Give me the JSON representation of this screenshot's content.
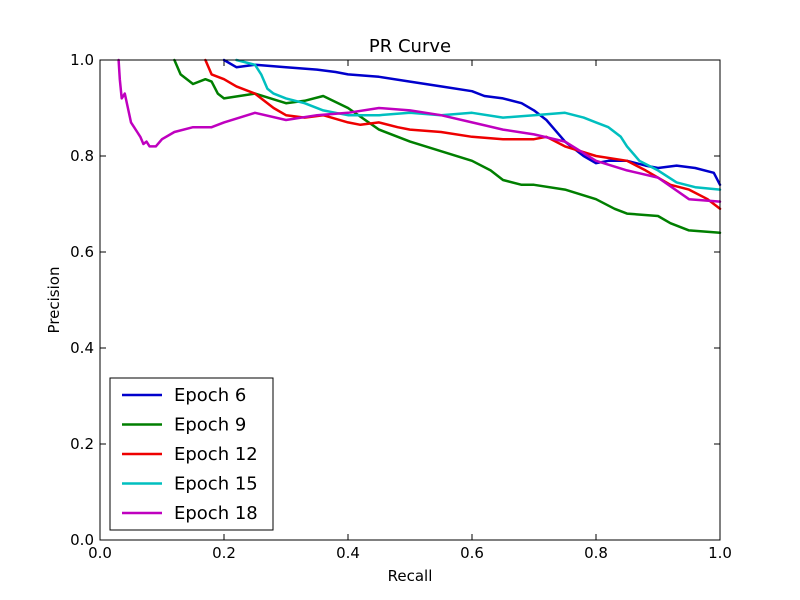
{
  "chart_data": {
    "type": "line",
    "title": "PR Curve",
    "xlabel": "Recall",
    "ylabel": "Precision",
    "xlim": [
      0.0,
      1.0
    ],
    "ylim": [
      0.0,
      1.0
    ],
    "xticks": [
      "0.0",
      "0.2",
      "0.4",
      "0.6",
      "0.8",
      "1.0"
    ],
    "yticks": [
      "0.0",
      "0.2",
      "0.4",
      "0.6",
      "0.8",
      "1.0"
    ],
    "grid": false,
    "legend_position": "lower-left",
    "series": [
      {
        "name": "Epoch 6",
        "color": "#0000cc",
        "x": [
          0.2,
          0.22,
          0.25,
          0.3,
          0.35,
          0.38,
          0.4,
          0.45,
          0.5,
          0.55,
          0.6,
          0.62,
          0.65,
          0.68,
          0.7,
          0.72,
          0.73,
          0.75,
          0.78,
          0.8,
          0.82,
          0.85,
          0.88,
          0.9,
          0.93,
          0.96,
          0.99,
          1.0
        ],
        "y": [
          1.0,
          0.985,
          0.99,
          0.985,
          0.98,
          0.975,
          0.97,
          0.965,
          0.955,
          0.945,
          0.935,
          0.925,
          0.92,
          0.91,
          0.895,
          0.875,
          0.86,
          0.83,
          0.8,
          0.785,
          0.79,
          0.79,
          0.78,
          0.775,
          0.78,
          0.775,
          0.765,
          0.74
        ]
      },
      {
        "name": "Epoch 9",
        "color": "#007f00",
        "x": [
          0.12,
          0.13,
          0.15,
          0.17,
          0.18,
          0.19,
          0.2,
          0.25,
          0.3,
          0.33,
          0.36,
          0.4,
          0.45,
          0.5,
          0.55,
          0.6,
          0.63,
          0.65,
          0.68,
          0.7,
          0.75,
          0.8,
          0.83,
          0.85,
          0.9,
          0.92,
          0.95,
          1.0
        ],
        "y": [
          1.0,
          0.97,
          0.95,
          0.96,
          0.955,
          0.93,
          0.92,
          0.93,
          0.91,
          0.915,
          0.925,
          0.9,
          0.855,
          0.83,
          0.81,
          0.79,
          0.77,
          0.75,
          0.74,
          0.74,
          0.73,
          0.71,
          0.69,
          0.68,
          0.675,
          0.66,
          0.645,
          0.64
        ]
      },
      {
        "name": "Epoch 12",
        "color": "#ee0000",
        "x": [
          0.17,
          0.18,
          0.2,
          0.22,
          0.25,
          0.28,
          0.3,
          0.33,
          0.36,
          0.4,
          0.42,
          0.45,
          0.48,
          0.5,
          0.55,
          0.6,
          0.65,
          0.7,
          0.72,
          0.75,
          0.8,
          0.85,
          0.88,
          0.92,
          0.95,
          0.98,
          1.0
        ],
        "y": [
          1.0,
          0.97,
          0.96,
          0.945,
          0.93,
          0.9,
          0.885,
          0.88,
          0.885,
          0.87,
          0.865,
          0.87,
          0.86,
          0.855,
          0.85,
          0.84,
          0.835,
          0.835,
          0.84,
          0.82,
          0.8,
          0.79,
          0.77,
          0.74,
          0.73,
          0.71,
          0.69
        ]
      },
      {
        "name": "Epoch 15",
        "color": "#00bfbf",
        "x": [
          0.22,
          0.25,
          0.26,
          0.27,
          0.28,
          0.3,
          0.33,
          0.36,
          0.38,
          0.4,
          0.45,
          0.5,
          0.55,
          0.6,
          0.65,
          0.7,
          0.75,
          0.78,
          0.8,
          0.82,
          0.84,
          0.85,
          0.87,
          0.9,
          0.93,
          0.96,
          1.0
        ],
        "y": [
          1.0,
          0.99,
          0.97,
          0.94,
          0.93,
          0.92,
          0.91,
          0.895,
          0.89,
          0.885,
          0.885,
          0.89,
          0.885,
          0.89,
          0.88,
          0.885,
          0.89,
          0.88,
          0.87,
          0.86,
          0.84,
          0.82,
          0.79,
          0.77,
          0.745,
          0.735,
          0.73
        ]
      },
      {
        "name": "Epoch 18",
        "color": "#bf00bf",
        "x": [
          0.03,
          0.032,
          0.035,
          0.04,
          0.045,
          0.05,
          0.055,
          0.06,
          0.065,
          0.07,
          0.075,
          0.08,
          0.09,
          0.1,
          0.12,
          0.15,
          0.18,
          0.2,
          0.25,
          0.3,
          0.35,
          0.4,
          0.45,
          0.5,
          0.55,
          0.6,
          0.65,
          0.7,
          0.75,
          0.8,
          0.85,
          0.9,
          0.95,
          1.0
        ],
        "y": [
          1.0,
          0.96,
          0.92,
          0.93,
          0.9,
          0.87,
          0.86,
          0.85,
          0.84,
          0.825,
          0.83,
          0.82,
          0.82,
          0.835,
          0.85,
          0.86,
          0.86,
          0.87,
          0.89,
          0.875,
          0.885,
          0.89,
          0.9,
          0.895,
          0.885,
          0.87,
          0.855,
          0.845,
          0.83,
          0.79,
          0.77,
          0.755,
          0.71,
          0.705
        ]
      }
    ]
  }
}
